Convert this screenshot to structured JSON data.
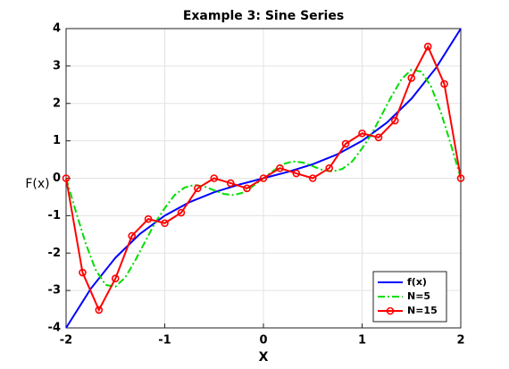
{
  "chart_data": {
    "type": "line",
    "title": "Example 3: Sine Series",
    "xlabel": "X",
    "ylabel": "F(x)",
    "xlim": [
      -2,
      2
    ],
    "ylim": [
      -4,
      4
    ],
    "xticks": [
      -2,
      -1,
      0,
      1,
      2
    ],
    "yticks": [
      -4,
      -3,
      -2,
      -1,
      0,
      1,
      2,
      3,
      4
    ],
    "grid": true,
    "legend": "southeast",
    "series": [
      {
        "name": "f(x)",
        "color": "#0000ff",
        "style": "solid",
        "marker": false,
        "x": [
          -2,
          -1.75,
          -1.5,
          -1.25,
          -1,
          -0.75,
          -0.5,
          -0.25,
          0,
          0.25,
          0.5,
          0.75,
          1,
          1.25,
          1.5,
          1.75,
          2
        ],
        "values": [
          -4,
          -2.953,
          -2.125,
          -1.484,
          -1,
          -0.641,
          -0.375,
          -0.172,
          0,
          0.172,
          0.375,
          0.641,
          1,
          1.484,
          2.125,
          2.953,
          4
        ]
      },
      {
        "name": "N=5",
        "color": "#00dd00",
        "style": "dashdot",
        "marker": false,
        "x": [
          -2,
          -1.9,
          -1.8,
          -1.7,
          -1.6,
          -1.5,
          -1.4,
          -1.3,
          -1.2,
          -1.1,
          -1,
          -0.9,
          -0.8,
          -0.7,
          -0.6,
          -0.5,
          -0.4,
          -0.3,
          -0.2,
          -0.1,
          0,
          0.1,
          0.2,
          0.3,
          0.4,
          0.5,
          0.6,
          0.7,
          0.8,
          0.9,
          1,
          1.1,
          1.2,
          1.3,
          1.4,
          1.5,
          1.6,
          1.7,
          1.8,
          1.9,
          2
        ],
        "values": [
          0,
          -0.9,
          -1.75,
          -2.45,
          -2.85,
          -2.9,
          -2.65,
          -2.2,
          -1.7,
          -1.2,
          -0.8,
          -0.45,
          -0.25,
          -0.18,
          -0.22,
          -0.32,
          -0.42,
          -0.45,
          -0.38,
          -0.2,
          0,
          0.2,
          0.38,
          0.45,
          0.42,
          0.32,
          0.22,
          0.18,
          0.25,
          0.45,
          0.8,
          1.2,
          1.7,
          2.2,
          2.65,
          2.9,
          2.85,
          2.45,
          1.75,
          0.9,
          0
        ]
      },
      {
        "name": "N=15",
        "color": "#ff0000",
        "style": "solid",
        "marker": true,
        "x": [
          -2,
          -1.833,
          -1.667,
          -1.5,
          -1.333,
          -1.167,
          -1,
          -0.833,
          -0.667,
          -0.5,
          -0.333,
          -0.167,
          0,
          0.167,
          0.333,
          0.5,
          0.667,
          0.833,
          1,
          1.167,
          1.333,
          1.5,
          1.667,
          1.833,
          2
        ],
        "values": [
          0,
          -2.52,
          -3.52,
          -2.68,
          -1.54,
          -1.09,
          -1.2,
          -0.92,
          -0.27,
          0,
          -0.13,
          -0.27,
          0,
          0.27,
          0.13,
          0,
          0.27,
          0.92,
          1.2,
          1.09,
          1.54,
          2.68,
          3.52,
          2.52,
          0
        ]
      }
    ]
  }
}
